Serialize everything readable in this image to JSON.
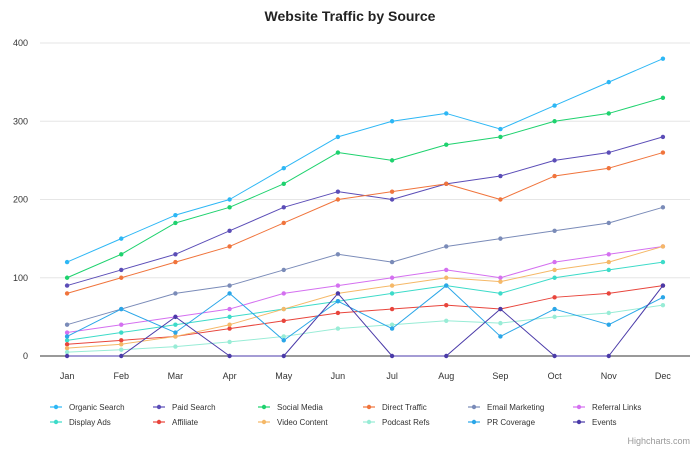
{
  "chart_data": {
    "type": "line",
    "title": "Website Traffic by Source",
    "xlabel": "",
    "ylabel": "",
    "categories": [
      "Jan",
      "Feb",
      "Mar",
      "Apr",
      "May",
      "Jun",
      "Jul",
      "Aug",
      "Sep",
      "Oct",
      "Nov",
      "Dec"
    ],
    "ylim": [
      0,
      400
    ],
    "yticks": [
      0,
      100,
      200,
      300,
      400
    ],
    "grid": true,
    "legend_position": "bottom",
    "credits": "Highcharts.com",
    "series": [
      {
        "name": "Organic Search",
        "color": "#2db7f5",
        "values": [
          120,
          150,
          180,
          200,
          240,
          280,
          300,
          310,
          290,
          320,
          350,
          380
        ]
      },
      {
        "name": "Paid Search",
        "color": "#5b4db7",
        "values": [
          90,
          110,
          130,
          160,
          190,
          210,
          200,
          220,
          230,
          250,
          260,
          280
        ]
      },
      {
        "name": "Social Media",
        "color": "#1ed26e",
        "values": [
          100,
          130,
          170,
          190,
          220,
          260,
          250,
          270,
          280,
          300,
          310,
          330
        ]
      },
      {
        "name": "Direct Traffic",
        "color": "#f0743c",
        "values": [
          80,
          100,
          120,
          140,
          170,
          200,
          210,
          220,
          200,
          230,
          240,
          260
        ]
      },
      {
        "name": "Email Marketing",
        "color": "#7a8bb8",
        "values": [
          40,
          60,
          80,
          90,
          110,
          130,
          120,
          140,
          150,
          160,
          170,
          190
        ]
      },
      {
        "name": "Referral Links",
        "color": "#d470f0",
        "values": [
          30,
          40,
          50,
          60,
          80,
          90,
          100,
          110,
          100,
          120,
          130,
          140
        ]
      },
      {
        "name": "Display Ads",
        "color": "#3ddbc9",
        "values": [
          20,
          30,
          40,
          50,
          60,
          70,
          80,
          90,
          80,
          100,
          110,
          120
        ]
      },
      {
        "name": "Affiliate",
        "color": "#e8453c",
        "values": [
          15,
          20,
          25,
          35,
          45,
          55,
          60,
          65,
          60,
          75,
          80,
          90
        ]
      },
      {
        "name": "Video Content",
        "color": "#f5b867",
        "values": [
          10,
          15,
          25,
          40,
          60,
          80,
          90,
          100,
          95,
          110,
          120,
          140
        ]
      },
      {
        "name": "Podcast Refs",
        "color": "#98ecd6",
        "values": [
          5,
          8,
          12,
          18,
          25,
          35,
          40,
          45,
          42,
          50,
          55,
          65
        ]
      },
      {
        "name": "PR Coverage",
        "color": "#2aa6e8",
        "values": [
          25,
          60,
          30,
          80,
          20,
          70,
          35,
          90,
          25,
          60,
          40,
          75
        ]
      },
      {
        "name": "Events",
        "color": "#4a3aa8",
        "values": [
          0,
          0,
          50,
          0,
          0,
          80,
          0,
          0,
          60,
          0,
          0,
          90
        ]
      }
    ]
  }
}
